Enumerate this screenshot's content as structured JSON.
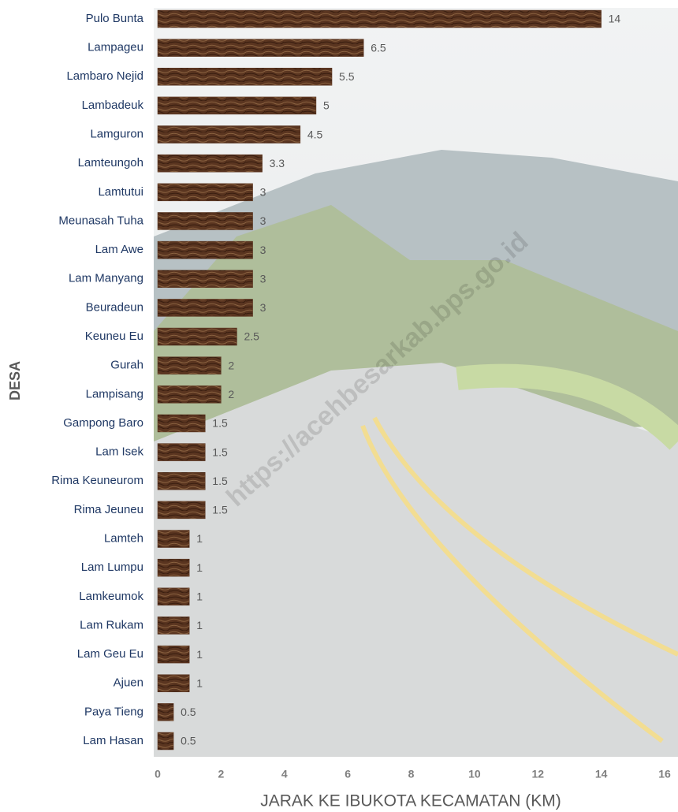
{
  "chart_data": {
    "type": "barh",
    "categories": [
      "Pulo Bunta",
      "Lampageu",
      "Lambaro Nejid",
      "Lambadeuk",
      "Lamguron",
      "Lamteungoh",
      "Lamtutui",
      "Meunasah Tuha",
      "Lam Awe",
      "Lam Manyang",
      "Beuradeun",
      "Keuneu Eu",
      "Gurah",
      "Lampisang",
      "Gampong Baro",
      "Lam Isek",
      "Rima Keuneurom",
      "Rima Jeuneu",
      "Lamteh",
      "Lam Lumpu",
      "Lamkeumok",
      "Lam Rukam",
      "Lam Geu Eu",
      "Ajuen",
      "Paya Tieng",
      "Lam Hasan"
    ],
    "values": [
      14,
      6.5,
      5.5,
      5,
      4.5,
      3.3,
      3,
      3,
      3,
      3,
      3,
      2.5,
      2,
      2,
      1.5,
      1.5,
      1.5,
      1.5,
      1,
      1,
      1,
      1,
      1,
      1,
      0.5,
      0.5
    ],
    "color": "#5a3520",
    "xlim": [
      0,
      16
    ],
    "xticks": [
      0,
      2,
      4,
      6,
      8,
      10,
      12,
      14,
      16
    ],
    "x_label": "JARAK KE IBUKOTA KECAMATAN (KM)",
    "y_label": "DESA",
    "watermark": "https://acehbesarkab.bps.go.id"
  }
}
